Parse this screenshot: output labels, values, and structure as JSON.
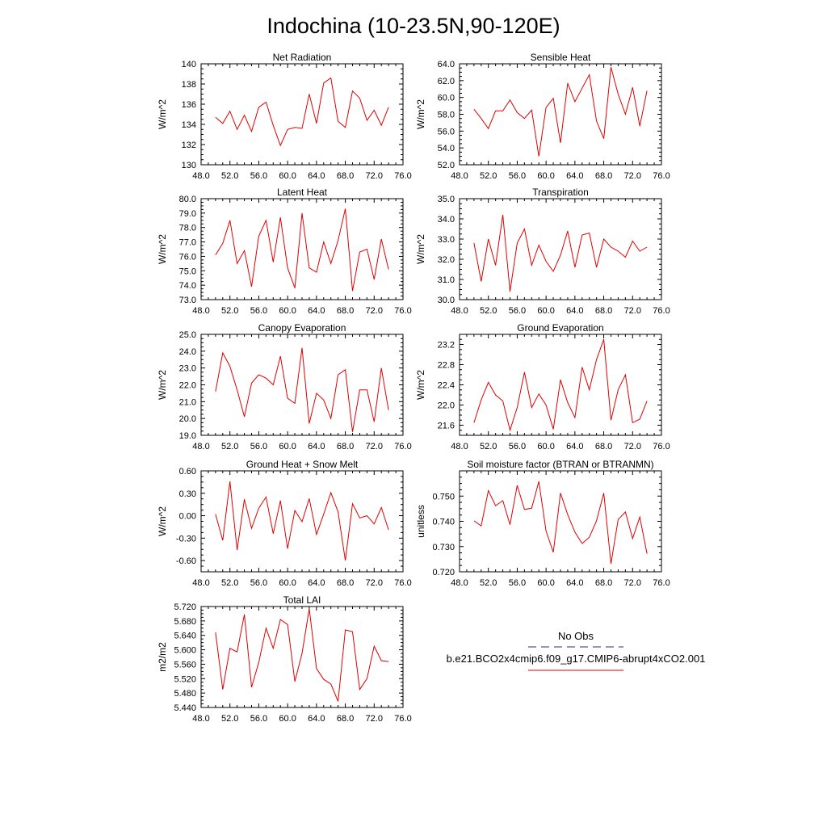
{
  "figure_title": "Indochina (10-23.5N,90-120E)",
  "legend": {
    "entries": [
      {
        "label": "No Obs",
        "color": "#2b2b8a",
        "dash": true
      },
      {
        "label": "b.e21.BCO2x4cmip6.f09_g17.CMIP6-abrupt4xCO2.001",
        "color": "#e00000",
        "dash": false
      }
    ]
  },
  "chart_data": [
    {
      "type": "line",
      "title": "Net Radiation",
      "ylabel": "W/m^2",
      "xlim": [
        48,
        76
      ],
      "ylim": [
        130,
        140
      ],
      "xticks": [
        48,
        52,
        56,
        60,
        64,
        68,
        72,
        76
      ],
      "xtick_labels": [
        "48.0",
        "52.0",
        "56.0",
        "60.0",
        "64.0",
        "68.0",
        "72.0",
        "76.0"
      ],
      "yticks": [
        130,
        132,
        134,
        136,
        138,
        140
      ],
      "ytick_labels": [
        "130",
        "132",
        "134",
        "136",
        "138",
        "140"
      ],
      "series": [
        {
          "name": "b.e21.BCO2x4cmip6.f09_g17.CMIP6-abrupt4xCO2.001",
          "color": "#e00000",
          "x": [
            50,
            51,
            52,
            53,
            54,
            55,
            56,
            57,
            58,
            59,
            60,
            61,
            62,
            63,
            64,
            65,
            66,
            67,
            68,
            69,
            70,
            71,
            72,
            73,
            74
          ],
          "y": [
            134.7,
            134.1,
            135.3,
            133.5,
            134.9,
            133.3,
            135.7,
            136.2,
            133.9,
            131.9,
            133.5,
            133.7,
            133.6,
            137.0,
            134.1,
            138.1,
            138.6,
            134.3,
            133.7,
            137.3,
            136.6,
            134.4,
            135.4,
            133.9,
            135.7
          ]
        }
      ]
    },
    {
      "type": "line",
      "title": "Sensible Heat",
      "ylabel": "W/m^2",
      "xlim": [
        48,
        76
      ],
      "ylim": [
        52,
        64
      ],
      "xticks": [
        48,
        52,
        56,
        60,
        64,
        68,
        72,
        76
      ],
      "xtick_labels": [
        "48.0",
        "52.0",
        "56.0",
        "60.0",
        "64.0",
        "68.0",
        "72.0",
        "76.0"
      ],
      "yticks": [
        52,
        54,
        56,
        58,
        60,
        62,
        64
      ],
      "ytick_labels": [
        "52.0",
        "54.0",
        "56.0",
        "58.0",
        "60.0",
        "62.0",
        "64.0"
      ],
      "series": [
        {
          "name": "b.e21.BCO2x4cmip6.f09_g17.CMIP6-abrupt4xCO2.001",
          "color": "#e00000",
          "x": [
            50,
            51,
            52,
            53,
            54,
            55,
            56,
            57,
            58,
            59,
            60,
            61,
            62,
            63,
            64,
            65,
            66,
            67,
            68,
            69,
            70,
            71,
            72,
            73,
            74
          ],
          "y": [
            58.6,
            57.5,
            56.3,
            58.4,
            58.4,
            59.7,
            58.2,
            57.5,
            58.5,
            53.0,
            58.8,
            59.9,
            54.6,
            61.7,
            59.5,
            61.1,
            62.7,
            57.2,
            55.1,
            63.6,
            60.4,
            58.0,
            61.2,
            56.6,
            60.8
          ]
        }
      ]
    },
    {
      "type": "line",
      "title": "Latent Heat",
      "ylabel": "W/m^2",
      "xlim": [
        48,
        76
      ],
      "ylim": [
        73,
        80
      ],
      "xticks": [
        48,
        52,
        56,
        60,
        64,
        68,
        72,
        76
      ],
      "xtick_labels": [
        "48.0",
        "52.0",
        "56.0",
        "60.0",
        "64.0",
        "68.0",
        "72.0",
        "76.0"
      ],
      "yticks": [
        73,
        74,
        75,
        76,
        77,
        78,
        79,
        80
      ],
      "ytick_labels": [
        "73.0",
        "74.0",
        "75.0",
        "76.0",
        "77.0",
        "78.0",
        "79.0",
        "80.0"
      ],
      "series": [
        {
          "name": "b.e21.BCO2x4cmip6.f09_g17.CMIP6-abrupt4xCO2.001",
          "color": "#e00000",
          "x": [
            50,
            51,
            52,
            53,
            54,
            55,
            56,
            57,
            58,
            59,
            60,
            61,
            62,
            63,
            64,
            65,
            66,
            67,
            68,
            69,
            70,
            71,
            72,
            73,
            74
          ],
          "y": [
            76.1,
            76.9,
            78.5,
            75.5,
            76.4,
            73.9,
            77.4,
            78.5,
            75.6,
            78.7,
            75.2,
            73.8,
            79.0,
            75.2,
            74.9,
            77.0,
            75.5,
            77.1,
            79.3,
            73.6,
            76.3,
            76.5,
            74.4,
            77.2,
            75.1
          ]
        }
      ]
    },
    {
      "type": "line",
      "title": "Transpiration",
      "ylabel": "W/m^2",
      "xlim": [
        48,
        76
      ],
      "ylim": [
        30,
        35
      ],
      "xticks": [
        48,
        52,
        56,
        60,
        64,
        68,
        72,
        76
      ],
      "xtick_labels": [
        "48.0",
        "52.0",
        "56.0",
        "60.0",
        "64.0",
        "68.0",
        "72.0",
        "76.0"
      ],
      "yticks": [
        30,
        31,
        32,
        33,
        34,
        35
      ],
      "ytick_labels": [
        "30.0",
        "31.0",
        "32.0",
        "33.0",
        "34.0",
        "35.0"
      ],
      "series": [
        {
          "name": "b.e21.BCO2x4cmip6.f09_g17.CMIP6-abrupt4xCO2.001",
          "color": "#e00000",
          "x": [
            50,
            51,
            52,
            53,
            54,
            55,
            56,
            57,
            58,
            59,
            60,
            61,
            62,
            63,
            64,
            65,
            66,
            67,
            68,
            69,
            70,
            71,
            72,
            73,
            74
          ],
          "y": [
            32.8,
            30.9,
            33.0,
            31.7,
            34.2,
            30.4,
            32.8,
            33.5,
            31.7,
            32.7,
            31.9,
            31.4,
            32.2,
            33.4,
            31.6,
            33.2,
            33.3,
            31.6,
            33.0,
            32.6,
            32.4,
            32.1,
            32.9,
            32.4,
            32.6
          ]
        }
      ]
    },
    {
      "type": "line",
      "title": "Canopy Evaporation",
      "ylabel": "W/m^2",
      "xlim": [
        48,
        76
      ],
      "ylim": [
        19,
        25
      ],
      "xticks": [
        48,
        52,
        56,
        60,
        64,
        68,
        72,
        76
      ],
      "xtick_labels": [
        "48.0",
        "52.0",
        "56.0",
        "60.0",
        "64.0",
        "68.0",
        "72.0",
        "76.0"
      ],
      "yticks": [
        19,
        20,
        21,
        22,
        23,
        24,
        25
      ],
      "ytick_labels": [
        "19.0",
        "20.0",
        "21.0",
        "22.0",
        "23.0",
        "24.0",
        "25.0"
      ],
      "series": [
        {
          "name": "b.e21.BCO2x4cmip6.f09_g17.CMIP6-abrupt4xCO2.001",
          "color": "#e00000",
          "x": [
            50,
            51,
            52,
            53,
            54,
            55,
            56,
            57,
            58,
            59,
            60,
            61,
            62,
            63,
            64,
            65,
            66,
            67,
            68,
            69,
            70,
            71,
            72,
            73,
            74
          ],
          "y": [
            21.6,
            23.9,
            23.1,
            21.7,
            20.1,
            22.1,
            22.6,
            22.4,
            22.0,
            23.7,
            21.2,
            20.9,
            24.2,
            19.7,
            21.5,
            21.1,
            20.0,
            22.6,
            22.9,
            19.2,
            21.7,
            21.7,
            19.8,
            23.0,
            20.5
          ]
        }
      ]
    },
    {
      "type": "line",
      "title": "Ground Evaporation",
      "ylabel": "W/m^2",
      "xlim": [
        48,
        76
      ],
      "ylim": [
        21.4,
        23.4
      ],
      "xticks": [
        48,
        52,
        56,
        60,
        64,
        68,
        72,
        76
      ],
      "xtick_labels": [
        "48.0",
        "52.0",
        "56.0",
        "60.0",
        "64.0",
        "68.0",
        "72.0",
        "76.0"
      ],
      "yticks": [
        21.6,
        22.0,
        22.4,
        22.8,
        23.2
      ],
      "ytick_labels": [
        "21.6",
        "22.0",
        "22.4",
        "22.8",
        "23.2"
      ],
      "series": [
        {
          "name": "b.e21.BCO2x4cmip6.f09_g17.CMIP6-abrupt4xCO2.001",
          "color": "#e00000",
          "x": [
            50,
            51,
            52,
            53,
            54,
            55,
            56,
            57,
            58,
            59,
            60,
            61,
            62,
            63,
            64,
            65,
            66,
            67,
            68,
            69,
            70,
            71,
            72,
            73,
            74
          ],
          "y": [
            21.65,
            22.1,
            22.45,
            22.2,
            22.08,
            21.5,
            21.95,
            22.65,
            21.95,
            22.22,
            22.0,
            21.52,
            22.5,
            22.05,
            21.75,
            22.75,
            22.3,
            22.9,
            23.3,
            21.7,
            22.3,
            22.6,
            21.65,
            21.72,
            22.08
          ]
        }
      ]
    },
    {
      "type": "line",
      "title": "Ground Heat + Snow Melt",
      "ylabel": "W/m^2",
      "xlim": [
        48,
        76
      ],
      "ylim": [
        -0.75,
        0.6
      ],
      "xticks": [
        48,
        52,
        56,
        60,
        64,
        68,
        72,
        76
      ],
      "xtick_labels": [
        "48.0",
        "52.0",
        "56.0",
        "60.0",
        "64.0",
        "68.0",
        "72.0",
        "76.0"
      ],
      "yticks": [
        -0.6,
        -0.3,
        0.0,
        0.3,
        0.6
      ],
      "ytick_labels": [
        "-0.60",
        "-0.30",
        "0.00",
        "0.30",
        "0.60"
      ],
      "series": [
        {
          "name": "b.e21.BCO2x4cmip6.f09_g17.CMIP6-abrupt4xCO2.001",
          "color": "#e00000",
          "x": [
            50,
            51,
            52,
            53,
            54,
            55,
            56,
            57,
            58,
            59,
            60,
            61,
            62,
            63,
            64,
            65,
            66,
            67,
            68,
            69,
            70,
            71,
            72,
            73,
            74
          ],
          "y": [
            0.02,
            -0.33,
            0.46,
            -0.46,
            0.22,
            -0.17,
            0.1,
            0.25,
            -0.24,
            0.2,
            -0.44,
            0.07,
            -0.08,
            0.23,
            -0.25,
            0.02,
            0.31,
            0.05,
            -0.6,
            0.16,
            -0.03,
            0.0,
            -0.11,
            0.11,
            -0.19
          ]
        }
      ]
    },
    {
      "type": "line",
      "title": "Soil moisture factor (BTRAN or BTRANMN)",
      "ylabel": "unitless",
      "xlim": [
        48,
        76
      ],
      "ylim": [
        0.72,
        0.76
      ],
      "xticks": [
        48,
        52,
        56,
        60,
        64,
        68,
        72,
        76
      ],
      "xtick_labels": [
        "48.0",
        "52.0",
        "56.0",
        "60.0",
        "64.0",
        "68.0",
        "72.0",
        "76.0"
      ],
      "yticks": [
        0.72,
        0.73,
        0.74,
        0.75
      ],
      "ytick_labels": [
        "0.720",
        "0.730",
        "0.740",
        "0.750"
      ],
      "series": [
        {
          "name": "b.e21.BCO2x4cmip6.f09_g17.CMIP6-abrupt4xCO2.001",
          "color": "#e00000",
          "x": [
            50,
            51,
            52,
            53,
            54,
            55,
            56,
            57,
            58,
            59,
            60,
            61,
            62,
            63,
            64,
            65,
            66,
            67,
            68,
            69,
            70,
            71,
            72,
            73,
            74
          ],
          "y": [
            0.7402,
            0.7382,
            0.7522,
            0.7462,
            0.7482,
            0.7387,
            0.7542,
            0.7447,
            0.7452,
            0.7558,
            0.7362,
            0.7277,
            0.7512,
            0.7427,
            0.7357,
            0.7312,
            0.7337,
            0.7402,
            0.7512,
            0.7232,
            0.7407,
            0.7437,
            0.7332,
            0.7417,
            0.7272
          ]
        }
      ]
    },
    {
      "type": "line",
      "title": "Total LAI",
      "ylabel": "m2/m2",
      "xlim": [
        48,
        76
      ],
      "ylim": [
        5.44,
        5.72
      ],
      "xticks": [
        48,
        52,
        56,
        60,
        64,
        68,
        72,
        76
      ],
      "xtick_labels": [
        "48.0",
        "52.0",
        "56.0",
        "60.0",
        "64.0",
        "68.0",
        "72.0",
        "76.0"
      ],
      "yticks": [
        5.44,
        5.48,
        5.52,
        5.56,
        5.6,
        5.64,
        5.68,
        5.72
      ],
      "ytick_labels": [
        "5.440",
        "5.480",
        "5.520",
        "5.560",
        "5.600",
        "5.640",
        "5.680",
        "5.720"
      ],
      "series": [
        {
          "name": "b.e21.BCO2x4cmip6.f09_g17.CMIP6-abrupt4xCO2.001",
          "color": "#e00000",
          "x": [
            50,
            51,
            52,
            53,
            54,
            55,
            56,
            57,
            58,
            59,
            60,
            61,
            62,
            63,
            64,
            65,
            66,
            67,
            68,
            69,
            70,
            71,
            72,
            73,
            74
          ],
          "y": [
            5.648,
            5.49,
            5.604,
            5.594,
            5.698,
            5.496,
            5.565,
            5.66,
            5.604,
            5.684,
            5.67,
            5.512,
            5.59,
            5.714,
            5.548,
            5.518,
            5.505,
            5.457,
            5.655,
            5.65,
            5.49,
            5.52,
            5.61,
            5.57,
            5.567
          ]
        }
      ]
    }
  ]
}
